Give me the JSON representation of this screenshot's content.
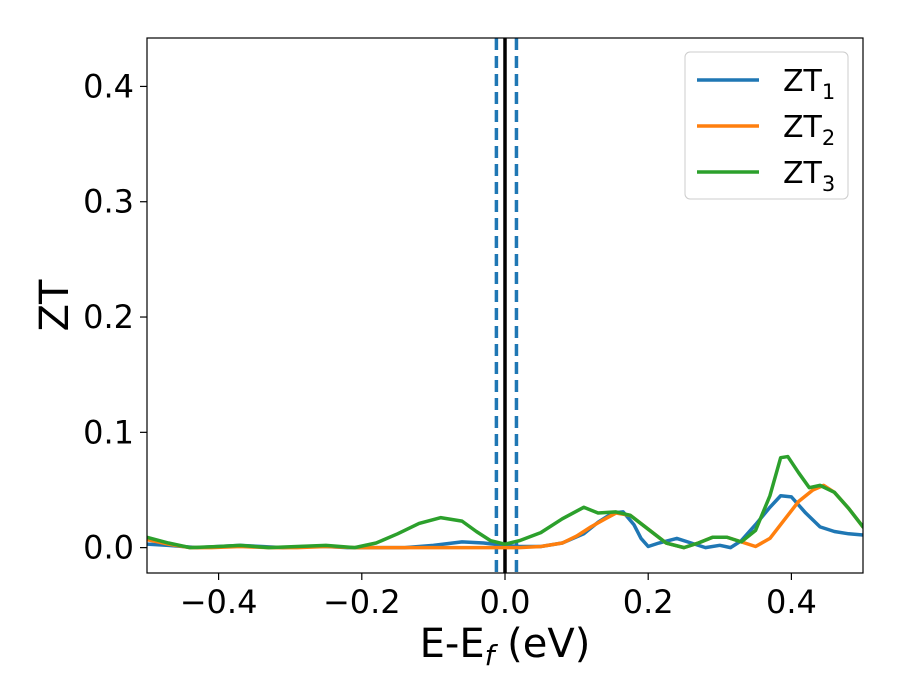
{
  "chart_data": {
    "type": "line",
    "xlabel": {
      "main": "E-E",
      "sub": "f",
      "rest": " (eV)"
    },
    "ylabel": "ZT",
    "xlim": [
      -0.5,
      0.5
    ],
    "ylim": [
      -0.022,
      0.442
    ],
    "xticks": [
      {
        "v": -0.4,
        "label": "−0.4"
      },
      {
        "v": -0.2,
        "label": "−0.2"
      },
      {
        "v": 0.0,
        "label": "0.0"
      },
      {
        "v": 0.2,
        "label": "0.2"
      },
      {
        "v": 0.4,
        "label": "0.4"
      }
    ],
    "yticks": [
      {
        "v": 0.0,
        "label": "0.0"
      },
      {
        "v": 0.1,
        "label": "0.1"
      },
      {
        "v": 0.2,
        "label": "0.2"
      },
      {
        "v": 0.3,
        "label": "0.3"
      },
      {
        "v": 0.4,
        "label": "0.4"
      }
    ],
    "vlines": [
      {
        "x": 0.0,
        "color": "#000000",
        "style": "solid"
      },
      {
        "x": -0.012,
        "color": "#1f77b4",
        "style": "dashed"
      },
      {
        "x": 0.016,
        "color": "#1f77b4",
        "style": "dashed"
      }
    ],
    "legend": {
      "position": "top-right"
    },
    "series": [
      {
        "name": "ZT",
        "sub": "1",
        "color": "#1f77b4",
        "points": [
          [
            -0.5,
            0.003
          ],
          [
            -0.47,
            0.002
          ],
          [
            -0.43,
            0.0
          ],
          [
            -0.4,
            0.001
          ],
          [
            -0.37,
            0.002
          ],
          [
            -0.34,
            0.001
          ],
          [
            -0.31,
            0.0
          ],
          [
            -0.28,
            0.001
          ],
          [
            -0.25,
            0.001
          ],
          [
            -0.22,
            0.0
          ],
          [
            -0.18,
            0.0
          ],
          [
            -0.14,
            0.0
          ],
          [
            -0.1,
            0.002
          ],
          [
            -0.06,
            0.005
          ],
          [
            -0.03,
            0.004
          ],
          [
            0.0,
            0.002
          ],
          [
            0.02,
            0.001
          ],
          [
            0.05,
            0.001
          ],
          [
            0.08,
            0.004
          ],
          [
            0.11,
            0.012
          ],
          [
            0.13,
            0.022
          ],
          [
            0.15,
            0.03
          ],
          [
            0.165,
            0.031
          ],
          [
            0.18,
            0.02
          ],
          [
            0.19,
            0.008
          ],
          [
            0.2,
            0.001
          ],
          [
            0.215,
            0.004
          ],
          [
            0.24,
            0.008
          ],
          [
            0.26,
            0.004
          ],
          [
            0.28,
            0.0
          ],
          [
            0.3,
            0.002
          ],
          [
            0.315,
            0.0
          ],
          [
            0.33,
            0.006
          ],
          [
            0.35,
            0.02
          ],
          [
            0.37,
            0.035
          ],
          [
            0.385,
            0.045
          ],
          [
            0.4,
            0.044
          ],
          [
            0.42,
            0.03
          ],
          [
            0.44,
            0.018
          ],
          [
            0.46,
            0.014
          ],
          [
            0.48,
            0.012
          ],
          [
            0.5,
            0.011
          ]
        ]
      },
      {
        "name": "ZT",
        "sub": "2",
        "color": "#ff7f0e",
        "points": [
          [
            -0.5,
            0.007
          ],
          [
            -0.47,
            0.003
          ],
          [
            -0.44,
            0.0
          ],
          [
            -0.41,
            0.0
          ],
          [
            -0.37,
            0.001
          ],
          [
            -0.33,
            0.0
          ],
          [
            -0.29,
            0.0
          ],
          [
            -0.25,
            0.001
          ],
          [
            -0.21,
            0.0
          ],
          [
            -0.17,
            0.0
          ],
          [
            0.0,
            0.0
          ],
          [
            0.02,
            0.0
          ],
          [
            0.05,
            0.001
          ],
          [
            0.08,
            0.004
          ],
          [
            0.1,
            0.01
          ],
          [
            0.12,
            0.018
          ],
          [
            0.14,
            0.025
          ],
          [
            0.155,
            0.03
          ],
          [
            0.175,
            0.028
          ],
          [
            0.2,
            0.016
          ],
          [
            0.225,
            0.004
          ],
          [
            0.25,
            0.0
          ],
          [
            0.27,
            0.004
          ],
          [
            0.29,
            0.009
          ],
          [
            0.31,
            0.009
          ],
          [
            0.33,
            0.005
          ],
          [
            0.35,
            0.001
          ],
          [
            0.37,
            0.008
          ],
          [
            0.39,
            0.024
          ],
          [
            0.41,
            0.04
          ],
          [
            0.43,
            0.05
          ],
          [
            0.445,
            0.054
          ],
          [
            0.46,
            0.048
          ],
          [
            0.48,
            0.034
          ],
          [
            0.5,
            0.018
          ]
        ]
      },
      {
        "name": "ZT",
        "sub": "3",
        "color": "#2ca02c",
        "points": [
          [
            -0.5,
            0.009
          ],
          [
            -0.47,
            0.004
          ],
          [
            -0.44,
            0.0
          ],
          [
            -0.4,
            0.001
          ],
          [
            -0.37,
            0.002
          ],
          [
            -0.33,
            0.0
          ],
          [
            -0.29,
            0.001
          ],
          [
            -0.25,
            0.002
          ],
          [
            -0.21,
            0.0
          ],
          [
            -0.18,
            0.004
          ],
          [
            -0.15,
            0.012
          ],
          [
            -0.12,
            0.021
          ],
          [
            -0.09,
            0.026
          ],
          [
            -0.06,
            0.023
          ],
          [
            -0.04,
            0.014
          ],
          [
            -0.02,
            0.006
          ],
          [
            0.0,
            0.003
          ],
          [
            0.02,
            0.006
          ],
          [
            0.05,
            0.013
          ],
          [
            0.08,
            0.025
          ],
          [
            0.11,
            0.035
          ],
          [
            0.13,
            0.03
          ],
          [
            0.155,
            0.031
          ],
          [
            0.175,
            0.028
          ],
          [
            0.2,
            0.016
          ],
          [
            0.225,
            0.004
          ],
          [
            0.25,
            0.0
          ],
          [
            0.27,
            0.004
          ],
          [
            0.29,
            0.009
          ],
          [
            0.31,
            0.009
          ],
          [
            0.33,
            0.005
          ],
          [
            0.35,
            0.015
          ],
          [
            0.37,
            0.045
          ],
          [
            0.385,
            0.078
          ],
          [
            0.395,
            0.079
          ],
          [
            0.41,
            0.065
          ],
          [
            0.425,
            0.052
          ],
          [
            0.44,
            0.054
          ],
          [
            0.46,
            0.048
          ],
          [
            0.48,
            0.034
          ],
          [
            0.5,
            0.018
          ]
        ]
      }
    ]
  }
}
